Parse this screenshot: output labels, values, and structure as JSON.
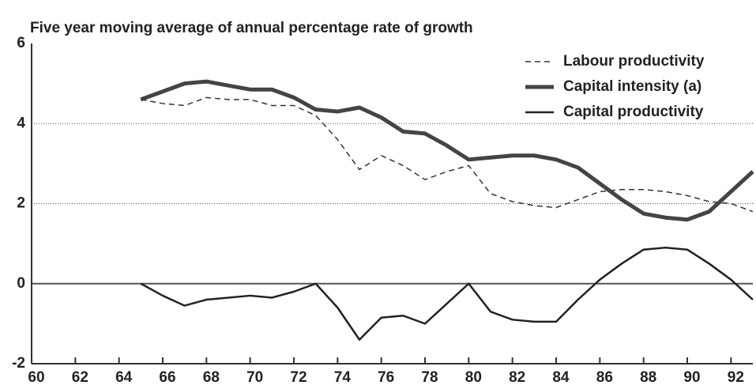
{
  "chart_data": {
    "type": "line",
    "title": "Five year moving average of annual percentage rate of growth",
    "x": [
      65,
      66,
      67,
      68,
      69,
      70,
      71,
      72,
      73,
      74,
      75,
      76,
      77,
      78,
      79,
      80,
      81,
      82,
      83,
      84,
      85,
      86,
      87,
      88,
      89,
      90,
      91,
      92,
      93
    ],
    "series": [
      {
        "name": "Labour productivity",
        "color": "#333333",
        "style": "dashed",
        "values": [
          4.6,
          4.5,
          4.45,
          4.65,
          4.6,
          4.6,
          4.45,
          4.45,
          4.2,
          3.6,
          2.85,
          3.2,
          2.95,
          2.6,
          2.8,
          2.95,
          2.25,
          2.05,
          1.95,
          1.9,
          2.1,
          2.3,
          2.35,
          2.35,
          2.3,
          2.2,
          2.05,
          2.0,
          1.8
        ]
      },
      {
        "name": "Capital intensity (a)",
        "color": "#444444",
        "style": "thick",
        "values": [
          4.6,
          4.8,
          5.0,
          5.05,
          4.95,
          4.85,
          4.85,
          4.65,
          4.35,
          4.3,
          4.4,
          4.15,
          3.8,
          3.75,
          3.45,
          3.1,
          3.15,
          3.2,
          3.2,
          3.1,
          2.9,
          2.5,
          2.1,
          1.75,
          1.65,
          1.6,
          1.8,
          2.3,
          2.8
        ]
      },
      {
        "name": "Capital productivity",
        "color": "#222222",
        "style": "solid",
        "values": [
          0,
          -0.3,
          -0.55,
          -0.4,
          -0.35,
          -0.3,
          -0.35,
          -0.2,
          0,
          -0.6,
          -1.4,
          -0.85,
          -0.8,
          -1.0,
          -0.5,
          0,
          -0.7,
          -0.9,
          -0.95,
          -0.95,
          -0.4,
          0.1,
          0.5,
          0.85,
          0.9,
          0.85,
          0.5,
          0.1,
          -0.4
        ]
      }
    ],
    "xlim": [
      60,
      93
    ],
    "xticks": [
      60,
      62,
      64,
      66,
      68,
      70,
      72,
      74,
      76,
      78,
      80,
      82,
      84,
      86,
      88,
      90,
      92
    ],
    "ylim": [
      -2,
      6
    ],
    "yticks": [
      -2,
      0,
      2,
      4,
      6
    ],
    "grid": true,
    "legend": "top-right"
  }
}
